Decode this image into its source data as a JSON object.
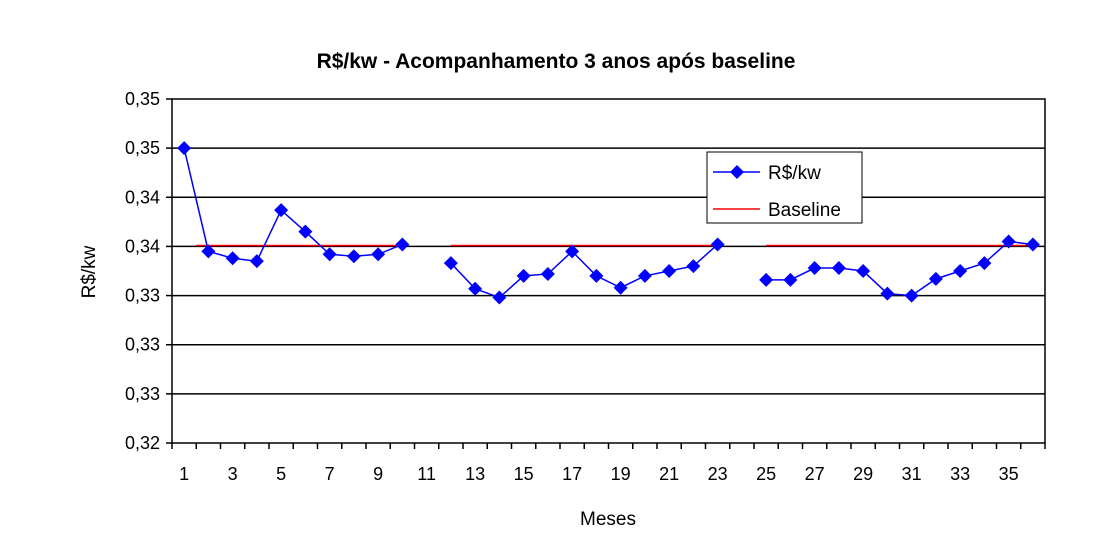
{
  "chart_data": {
    "type": "line",
    "title": "R$/kw - Acompanhamento 3 anos após baseline",
    "xlabel": "Meses",
    "ylabel": "R$/kw",
    "x": [
      1,
      2,
      3,
      4,
      5,
      6,
      7,
      8,
      9,
      10,
      11,
      12,
      13,
      14,
      15,
      16,
      17,
      18,
      19,
      20,
      21,
      22,
      23,
      24,
      25,
      26,
      27,
      28,
      29,
      30,
      31,
      32,
      33,
      34,
      35,
      36
    ],
    "x_tick_labels": [
      "1",
      "3",
      "5",
      "7",
      "9",
      "11",
      "13",
      "15",
      "17",
      "19",
      "21",
      "23",
      "25",
      "27",
      "29",
      "31",
      "33",
      "35"
    ],
    "y_tick_labels": [
      "0,32",
      "0,33",
      "0,33",
      "0,33",
      "0,34",
      "0,34",
      "0,35",
      "0,35"
    ],
    "ylim": [
      0.32,
      0.355
    ],
    "grid": true,
    "legend_position": "top-right",
    "series": [
      {
        "name": "R$/kw",
        "color": "#0000ff",
        "marker": "diamond",
        "values": [
          0.35,
          0.3395,
          0.3388,
          0.3385,
          0.3437,
          0.3415,
          0.3392,
          0.339,
          0.3392,
          0.3402,
          null,
          0.3383,
          0.3357,
          0.3348,
          0.337,
          0.3372,
          0.3395,
          0.337,
          0.3358,
          0.337,
          0.3375,
          0.338,
          0.3402,
          null,
          0.3366,
          0.3366,
          0.3378,
          0.3378,
          0.3375,
          0.3352,
          0.335,
          0.3367,
          0.3375,
          0.3383,
          0.3405,
          0.3402
        ]
      },
      {
        "name": "Baseline",
        "color": "#ff0000",
        "marker": "none",
        "segments": [
          {
            "x_from": 1.5,
            "x_to": 10,
            "y": 0.3401
          },
          {
            "x_from": 12,
            "x_to": 23,
            "y": 0.3401
          },
          {
            "x_from": 25,
            "x_to": 36,
            "y": 0.3401
          }
        ]
      }
    ]
  }
}
